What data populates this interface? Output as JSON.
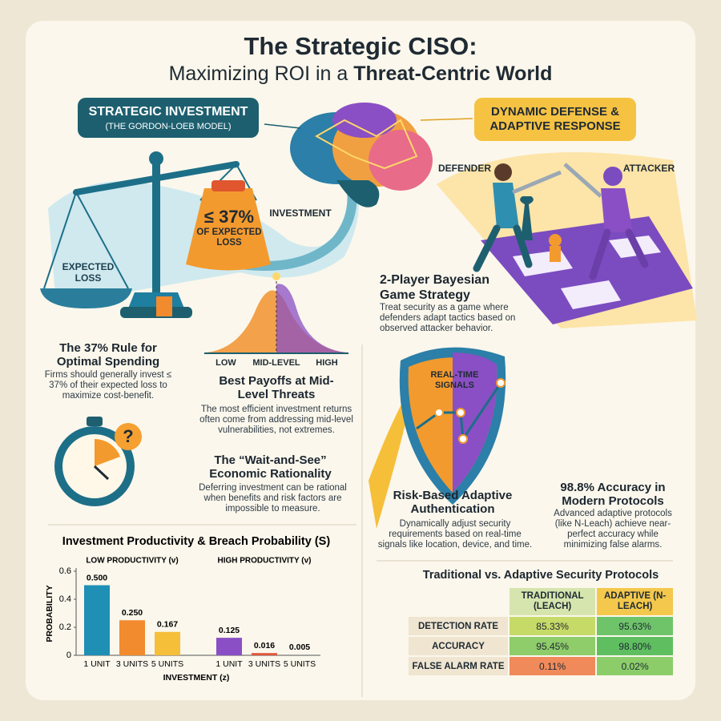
{
  "header": {
    "title": "The Strategic CISO:",
    "subtitle": "Maximizing ROI in a ",
    "subtitle_bold": "Threat-Centric World"
  },
  "investment": {
    "banner_title": "STRATEGIC INVESTMENT",
    "banner_subtitle": "(THE GORDON-LOEB MODEL)",
    "scale_left": "EXPECTED LOSS",
    "scale_right": "≤ 37%",
    "scale_right_sub": "OF EXPECTED LOSS",
    "investment_label": "INVESTMENT",
    "curve_labels": [
      "LOW",
      "MID-LEVEL",
      "HIGH"
    ],
    "rule_title": "The 37% Rule for Optimal Spending",
    "rule_text": "Firms should generally invest ≤ 37% of their expected loss to maximize cost-benefit.",
    "payoff_title": "Best Payoffs at Mid-Level Threats",
    "payoff_text": "The most efficient investment returns often come from addressing mid-level vulnerabilities, not extremes.",
    "wait_title": "The “Wait-and-See” Economic Rationality",
    "wait_text": "Deferring investment can be rational when benefits and risk factors are impossible to measure."
  },
  "defense": {
    "banner_title": "DYNAMIC DEFENSE & ADAPTIVE RESPONSE",
    "defender": "DEFENDER",
    "attacker": "ATTACKER",
    "game_title": "2-Player Bayesian Game Strategy",
    "game_text": "Treat security as a game where defenders adapt tactics based on observed attacker behavior.",
    "signals": "REAL-TIME SIGNALS",
    "auth_title": "Risk-Based Adaptive Authentication",
    "auth_text": "Dynamically adjust security requirements based on real-time signals like location, device, and time.",
    "accuracy_title": "98.8% Accuracy in Modern Protocols",
    "accuracy_text": "Advanced adaptive protocols (like N-Leach) achieve near-perfect accuracy while minimizing false alarms."
  },
  "chart_data": {
    "type": "bar",
    "title": "Investment Productivity & Breach Probability (S)",
    "x_label": "INVESTMENT (z)",
    "y_label": "PROBABILITY",
    "groups": [
      {
        "name": "LOW PRODUCTIVITY (v)",
        "categories": [
          "1 UNIT",
          "3 UNITS",
          "5 UNITS"
        ],
        "values": [
          0.5,
          0.25,
          0.167
        ],
        "value_labels": [
          "0.500",
          "0.250",
          "0.167"
        ],
        "colors": [
          "#1f8fb5",
          "#f28a2e",
          "#f6bf3a"
        ]
      },
      {
        "name": "HIGH PRODUCTIVITY (v)",
        "categories": [
          "1 UNIT",
          "3 UNITS",
          "5 UNITS"
        ],
        "values": [
          0.125,
          0.016,
          0.005
        ],
        "value_labels": [
          "0.125",
          "0.016",
          "0.005"
        ],
        "colors": [
          "#8a4fc4",
          "#e0563a",
          "#9a9a9a"
        ]
      }
    ],
    "ylim": [
      0,
      0.6
    ],
    "yticks": [
      0,
      0.2,
      0.4,
      0.6
    ]
  },
  "table": {
    "title": "Traditional vs. Adaptive Security Protocols",
    "columns": [
      "TRADITIONAL (LEACH)",
      "ADAPTIVE (N-LEACH)"
    ],
    "rows": [
      [
        "DETECTION RATE",
        "85.33%",
        "95.63%"
      ],
      [
        "ACCURACY",
        "95.45%",
        "98.80%"
      ],
      [
        "FALSE ALARM RATE",
        "0.11%",
        "0.02%"
      ]
    ]
  }
}
